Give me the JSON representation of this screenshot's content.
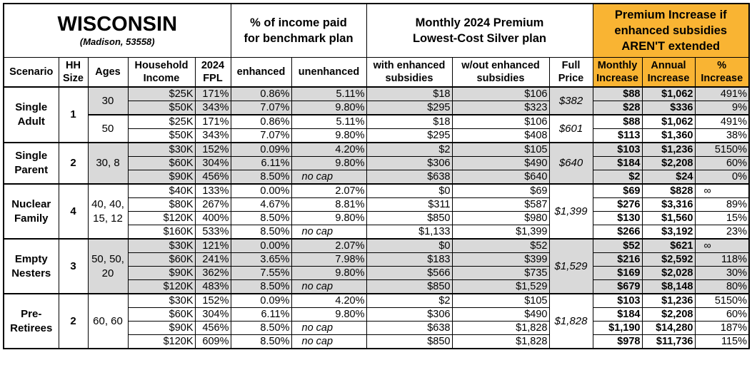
{
  "header": {
    "state": "WISCONSIN",
    "location": "(Madison, 53558)",
    "pct_income_title": "% of income paid for benchmark plan",
    "premium_title": "Monthly 2024 Premium Lowest-Cost Silver plan",
    "increase_title": "Premium Increase if enhanced subsidies AREN'T extended",
    "increase_color": "#F9B433",
    "shade_color": "#D9D9D9"
  },
  "columns": [
    "Scenario",
    "HH Size",
    "Ages",
    "Household Income",
    "2024 FPL",
    "enhanced",
    "unenhanced",
    "with enhanced subsidies",
    "w/out enhanced subsidies",
    "Full Price",
    "Monthly Increase",
    "Annual Increase",
    "% Increase"
  ],
  "groups": [
    {
      "scenario": "Single Adult",
      "hh_size": "1",
      "subgroups": [
        {
          "ages": "30",
          "shaded": true,
          "full_price": "$382",
          "rows": [
            [
              "$25K",
              "171%",
              "0.86%",
              "5.11%",
              "$18",
              "$106",
              "$88",
              "$1,062",
              "491%"
            ],
            [
              "$50K",
              "343%",
              "7.07%",
              "9.80%",
              "$295",
              "$323",
              "$28",
              "$336",
              "9%"
            ]
          ]
        },
        {
          "ages": "50",
          "shaded": false,
          "full_price": "$601",
          "rows": [
            [
              "$25K",
              "171%",
              "0.86%",
              "5.11%",
              "$18",
              "$106",
              "$88",
              "$1,062",
              "491%"
            ],
            [
              "$50K",
              "343%",
              "7.07%",
              "9.80%",
              "$295",
              "$408",
              "$113",
              "$1,360",
              "38%"
            ]
          ]
        }
      ]
    },
    {
      "scenario": "Single Parent",
      "hh_size": "2",
      "subgroups": [
        {
          "ages": "30, 8",
          "shaded": true,
          "full_price": "$640",
          "rows": [
            [
              "$30K",
              "152%",
              "0.09%",
              "4.20%",
              "$2",
              "$105",
              "$103",
              "$1,236",
              "5150%"
            ],
            [
              "$60K",
              "304%",
              "6.11%",
              "9.80%",
              "$306",
              "$490",
              "$184",
              "$2,208",
              "60%"
            ],
            [
              "$90K",
              "456%",
              "8.50%",
              "no cap",
              "$638",
              "$640",
              "$2",
              "$24",
              "0%"
            ]
          ]
        }
      ]
    },
    {
      "scenario": "Nuclear Family",
      "hh_size": "4",
      "subgroups": [
        {
          "ages": "40, 40, 15, 12",
          "shaded": false,
          "full_price": "$1,399",
          "rows": [
            [
              "$40K",
              "133%",
              "0.00%",
              "2.07%",
              "$0",
              "$69",
              "$69",
              "$828",
              "∞"
            ],
            [
              "$80K",
              "267%",
              "4.67%",
              "8.81%",
              "$311",
              "$587",
              "$276",
              "$3,316",
              "89%"
            ],
            [
              "$120K",
              "400%",
              "8.50%",
              "9.80%",
              "$850",
              "$980",
              "$130",
              "$1,560",
              "15%"
            ],
            [
              "$160K",
              "533%",
              "8.50%",
              "no cap",
              "$1,133",
              "$1,399",
              "$266",
              "$3,192",
              "23%"
            ]
          ]
        }
      ]
    },
    {
      "scenario": "Empty Nesters",
      "hh_size": "3",
      "subgroups": [
        {
          "ages": "50, 50, 20",
          "shaded": true,
          "full_price": "$1,529",
          "rows": [
            [
              "$30K",
              "121%",
              "0.00%",
              "2.07%",
              "$0",
              "$52",
              "$52",
              "$621",
              "∞"
            ],
            [
              "$60K",
              "241%",
              "3.65%",
              "7.98%",
              "$183",
              "$399",
              "$216",
              "$2,592",
              "118%"
            ],
            [
              "$90K",
              "362%",
              "7.55%",
              "9.80%",
              "$566",
              "$735",
              "$169",
              "$2,028",
              "30%"
            ],
            [
              "$120K",
              "483%",
              "8.50%",
              "no cap",
              "$850",
              "$1,529",
              "$679",
              "$8,148",
              "80%"
            ]
          ]
        }
      ]
    },
    {
      "scenario": "Pre-Retirees",
      "hh_size": "2",
      "subgroups": [
        {
          "ages": "60, 60",
          "shaded": false,
          "full_price": "$1,828",
          "rows": [
            [
              "$30K",
              "152%",
              "0.09%",
              "4.20%",
              "$2",
              "$105",
              "$103",
              "$1,236",
              "5150%"
            ],
            [
              "$60K",
              "304%",
              "6.11%",
              "9.80%",
              "$306",
              "$490",
              "$184",
              "$2,208",
              "60%"
            ],
            [
              "$90K",
              "456%",
              "8.50%",
              "no cap",
              "$638",
              "$1,828",
              "$1,190",
              "$14,280",
              "187%"
            ],
            [
              "$120K",
              "609%",
              "8.50%",
              "no cap",
              "$850",
              "$1,828",
              "$978",
              "$11,736",
              "115%"
            ]
          ]
        }
      ]
    }
  ]
}
